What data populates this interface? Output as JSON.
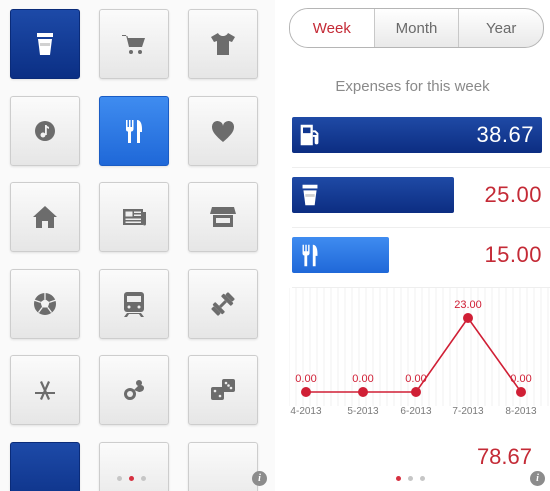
{
  "colors": {
    "accent_red": "#c42a36",
    "selected_dark_blue": "#0f3690",
    "selected_light_blue": "#2b78e4",
    "tile_icon_gray": "#6c6c6c"
  },
  "categories": [
    {
      "icon": "coffee-cup-icon",
      "state": "selected-dark"
    },
    {
      "icon": "shopping-cart-icon",
      "state": "normal"
    },
    {
      "icon": "tshirt-icon",
      "state": "normal"
    },
    {
      "icon": "music-note-icon",
      "state": "normal"
    },
    {
      "icon": "fork-knife-icon",
      "state": "selected-light"
    },
    {
      "icon": "heart-icon",
      "state": "normal"
    },
    {
      "icon": "house-icon",
      "state": "normal"
    },
    {
      "icon": "newspaper-icon",
      "state": "normal"
    },
    {
      "icon": "storefront-icon",
      "state": "normal"
    },
    {
      "icon": "soccer-ball-icon",
      "state": "normal"
    },
    {
      "icon": "train-icon",
      "state": "normal"
    },
    {
      "icon": "dumbbell-icon",
      "state": "normal"
    },
    {
      "icon": "app-store-icon",
      "state": "normal"
    },
    {
      "icon": "pacifier-icon",
      "state": "normal"
    },
    {
      "icon": "dice-icon",
      "state": "normal"
    },
    {
      "icon": "partial-tile-icon",
      "state": "selected-dark"
    },
    {
      "icon": "partial-tile-icon",
      "state": "normal"
    },
    {
      "icon": "partial-tile-icon",
      "state": "normal"
    }
  ],
  "left_pager": {
    "count": 3,
    "active": 1,
    "info_icon": "info-icon"
  },
  "right_pager": {
    "count": 3,
    "active": 0,
    "info_icon": "info-icon"
  },
  "period_tabs": [
    {
      "label": "Week",
      "active": true
    },
    {
      "label": "Month",
      "active": false
    },
    {
      "label": "Year",
      "active": false
    }
  ],
  "expenses_title": "Expenses for this week",
  "expense_bars": [
    {
      "icon": "fuel-pump-icon",
      "value": "38.67",
      "fraction": 1.0,
      "style": "dark",
      "value_inside": true
    },
    {
      "icon": "coffee-cup-icon",
      "value": "25.00",
      "fraction": 0.646,
      "style": "dark",
      "value_inside": false
    },
    {
      "icon": "fork-knife-icon",
      "value": "15.00",
      "fraction": 0.388,
      "style": "light",
      "value_inside": false
    }
  ],
  "chart_data": {
    "type": "line",
    "title": "",
    "xlabel": "",
    "ylabel": "",
    "x": [
      "4-2013",
      "5-2013",
      "6-2013",
      "7-2013",
      "8-2013"
    ],
    "series": [
      {
        "values": [
          0.0,
          0.0,
          0.0,
          23.0,
          0.0
        ]
      }
    ],
    "data_labels": [
      "0.00",
      "0.00",
      "0.00",
      "23.00",
      "0.00"
    ],
    "ylim": [
      0,
      23
    ],
    "color": "#d01f35",
    "grid": false
  },
  "total_value": "78.67"
}
